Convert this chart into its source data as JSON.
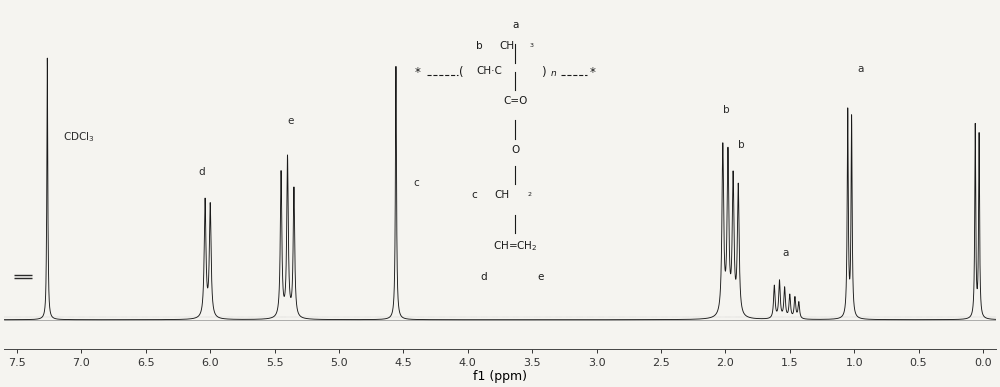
{
  "xlim": [
    7.6,
    -0.1
  ],
  "ylim": [
    -0.08,
    1.2
  ],
  "xlabel": "f1 (ppm)",
  "xlabel_fontsize": 9,
  "bg_color": "#f5f4f0",
  "line_color": "#1a1a1a",
  "tick_fontsize": 8,
  "xticks": [
    7.5,
    7.0,
    6.5,
    6.0,
    5.5,
    5.0,
    4.5,
    4.0,
    3.5,
    3.0,
    2.5,
    2.0,
    1.5,
    1.0,
    0.5,
    0.0
  ],
  "baseline_y": 0.03
}
